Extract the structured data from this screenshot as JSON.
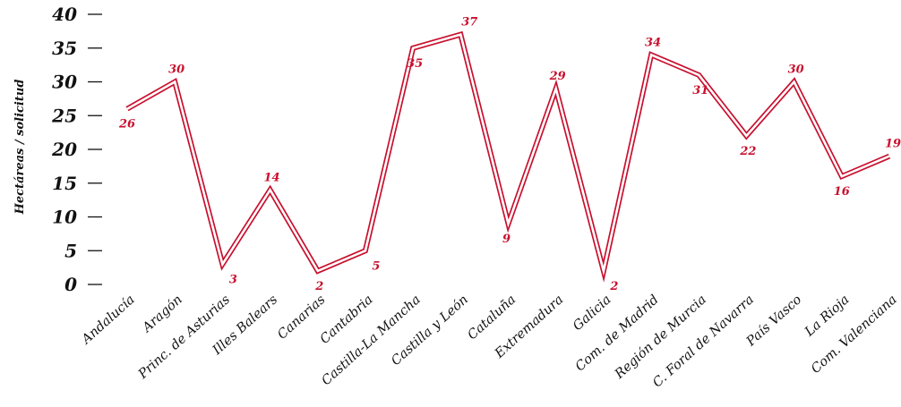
{
  "chart_data": {
    "type": "line",
    "title": "",
    "xlabel": "",
    "ylabel": "Hectáreas / solicitud",
    "ylim": [
      0,
      40
    ],
    "yticks": [
      "0",
      "5",
      "10",
      "15",
      "20",
      "25",
      "30",
      "35",
      "40"
    ],
    "grid": false,
    "legend": "none",
    "line_color": "#c8102e",
    "categories": [
      "Andalucía",
      "Aragón",
      "Princ. de Asturias",
      "Illes Balears",
      "Canarias",
      "Cantabria",
      "Castilla-La Mancha",
      "Castilla y León",
      "Cataluña",
      "Extremadura",
      "Galicia",
      "Com. de Madrid",
      "Región de Murcia",
      "C. Foral de Navarra",
      "País Vasco",
      "La Rioja",
      "Com. Valenciana"
    ],
    "values": [
      26,
      30,
      3,
      14,
      2,
      5,
      35,
      37,
      9,
      29,
      2,
      34,
      31,
      22,
      30,
      16,
      19
    ],
    "data_labels": [
      "26",
      "30",
      "3",
      "14",
      "2",
      "5",
      "35",
      "37",
      "9",
      "29",
      "2",
      "34",
      "31",
      "22",
      "30",
      "16",
      "19"
    ]
  }
}
